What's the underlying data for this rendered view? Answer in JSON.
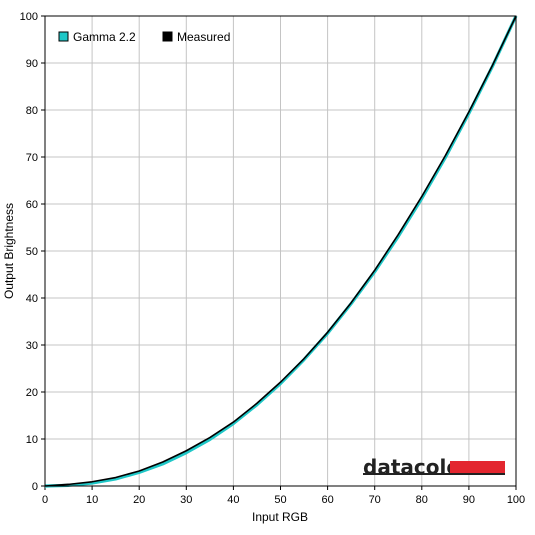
{
  "chart_data": {
    "type": "line",
    "xlabel": "Input RGB",
    "ylabel": "Output Brightness",
    "xlim": [
      0,
      100
    ],
    "ylim": [
      0,
      100
    ],
    "xticks": [
      0,
      10,
      20,
      30,
      40,
      50,
      60,
      70,
      80,
      90,
      100
    ],
    "yticks": [
      0,
      10,
      20,
      30,
      40,
      50,
      60,
      70,
      80,
      90,
      100
    ],
    "grid": true,
    "legend_position": "top-left",
    "series": [
      {
        "name": "Gamma 2.2",
        "color": "#1fc7c7",
        "x": [
          0,
          5,
          10,
          15,
          20,
          25,
          30,
          35,
          40,
          45,
          50,
          55,
          60,
          65,
          70,
          75,
          80,
          85,
          90,
          95,
          100
        ],
        "y": [
          0,
          0.14,
          0.63,
          1.5,
          2.9,
          4.7,
          7.1,
          9.9,
          13.3,
          17.3,
          21.8,
          26.9,
          32.5,
          38.8,
          45.6,
          53.1,
          61.2,
          69.9,
          79.3,
          89.3,
          100
        ]
      },
      {
        "name": "Measured",
        "color": "#000000",
        "x": [
          0,
          5,
          10,
          15,
          20,
          25,
          30,
          35,
          40,
          45,
          50,
          55,
          60,
          65,
          70,
          75,
          80,
          85,
          90,
          95,
          100
        ],
        "y": [
          0,
          0.35,
          0.9,
          1.8,
          3.2,
          5.1,
          7.5,
          10.3,
          13.6,
          17.6,
          22.1,
          27.1,
          32.7,
          39.0,
          45.9,
          53.5,
          61.6,
          70.3,
          79.6,
          89.5,
          100
        ]
      }
    ]
  },
  "watermark": {
    "text": "datacolor",
    "bar_color": "#e3262f"
  }
}
